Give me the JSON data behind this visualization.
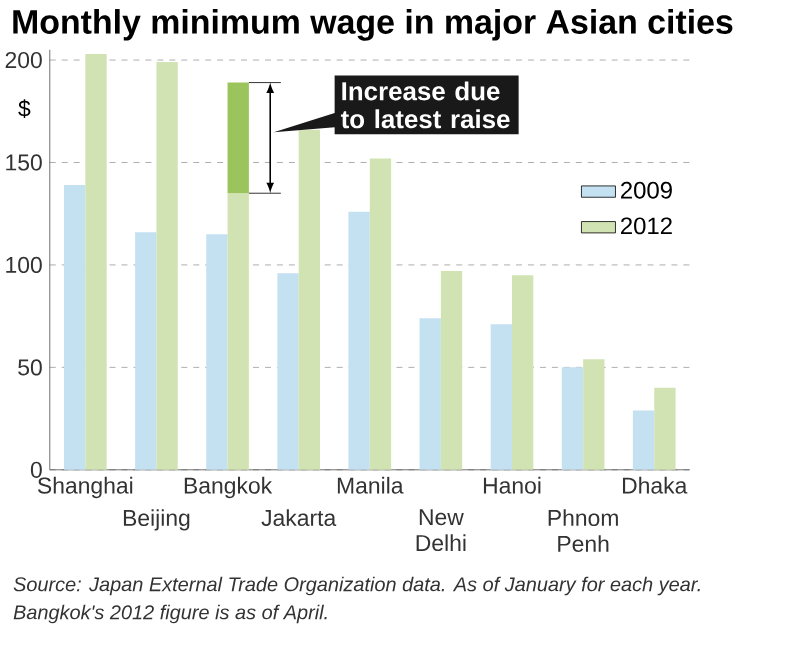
{
  "chart_data": {
    "type": "bar",
    "title": "Monthly minimum wage in major Asian cities",
    "ylabel": "$",
    "categories": [
      "Shanghai",
      "Beijing",
      "Bangkok",
      "Jakarta",
      "Manila",
      "New Delhi",
      "Hanoi",
      "Phnom Penh",
      "Dhaka"
    ],
    "series": [
      {
        "name": "2009",
        "color": "#c4e1f1",
        "values": [
          139,
          116,
          115,
          96,
          126,
          74,
          71,
          50,
          29
        ]
      },
      {
        "name": "2012",
        "color": "#d2e3b3",
        "values": [
          203,
          199,
          135,
          166,
          152,
          97,
          95,
          54,
          40
        ]
      },
      {
        "color": "#9cc45c",
        "values": [
          null,
          null,
          54,
          null,
          null,
          null,
          null,
          null,
          null
        ],
        "base": [
          null,
          null,
          135,
          null,
          null,
          null,
          null,
          null,
          null
        ]
      }
    ],
    "ylim": [
      0,
      205
    ],
    "yticks": [
      0,
      50,
      100,
      150,
      200
    ],
    "grid": "y",
    "legend": "right",
    "annotations": [
      "Increase due to latest raise",
      "Source: Japan External Trade Organization data. As of January for each year.",
      "Bangkok's 2012 figure is as of April."
    ]
  }
}
